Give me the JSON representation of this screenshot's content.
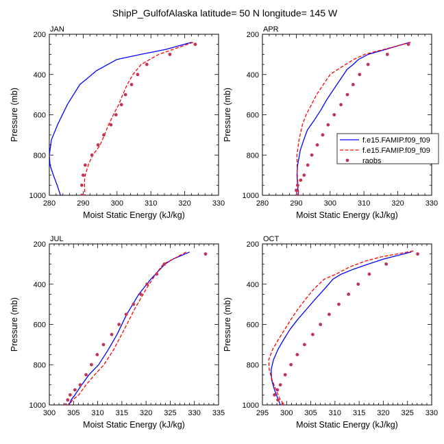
{
  "figure": {
    "title": "ShipP_GulfofAlaska  latitude= 50 N longitude= 145 W",
    "legend": {
      "placement": "right-of-APR-panel",
      "entries": [
        {
          "label": "f.e15.FAMIP.f09_f09",
          "style": "solid",
          "color": "#0000ff"
        },
        {
          "label": "f.e15.FAMIP.f09_f09",
          "style": "dashed",
          "color": "#ff0000"
        },
        {
          "label": "raobs",
          "style": "dots",
          "color": "#c0345a"
        }
      ]
    }
  },
  "chart_data": [
    {
      "type": "line",
      "month": "JAN",
      "xlabel": "Moist Static Energy (kJ/kg)",
      "ylabel": "Pressure (mb)",
      "xlim": [
        280,
        330
      ],
      "ylim": [
        200,
        1000
      ],
      "y_inverted": true,
      "xticks": [
        280,
        290,
        300,
        310,
        320,
        330
      ],
      "yticks": [
        200,
        400,
        600,
        800,
        1000
      ],
      "series": [
        {
          "style": "solid",
          "color": "#0000ff",
          "x": [
            322,
            314.5,
            307,
            300,
            294,
            289,
            285.3,
            282.4,
            280.6,
            280,
            280.2,
            281.2,
            282.3,
            283.3
          ],
          "y": [
            240,
            275,
            300,
            325,
            380,
            450,
            550,
            650,
            725,
            800,
            850,
            900,
            950,
            1000
          ]
        },
        {
          "style": "dashed",
          "color": "#ff0000",
          "x": [
            322.5,
            312.3,
            307.1,
            304.7,
            303,
            301.7,
            300.5,
            298.9,
            297.5,
            296.3,
            295,
            294,
            292.8,
            291.5,
            290.6,
            290.4,
            290.4,
            290.5
          ],
          "y": [
            240,
            300,
            350,
            400,
            450,
            500,
            550,
            600,
            650,
            700,
            750,
            775,
            800,
            850,
            900,
            925,
            950,
            1000
          ]
        },
        {
          "style": "dots",
          "color": "#c0345a",
          "x": [
            323.1,
            315.6,
            308.8,
            306.1,
            304.3,
            302.5,
            301.3,
            299.7,
            298.2,
            296.1,
            294.4,
            292.6,
            290.6,
            290,
            289.6,
            289.6
          ],
          "y": [
            250,
            300,
            350,
            400,
            450,
            500,
            550,
            600,
            650,
            700,
            750,
            800,
            850,
            900,
            950,
            1000
          ]
        }
      ]
    },
    {
      "type": "line",
      "month": "APR",
      "xlabel": "Moist Static Energy (kJ/kg)",
      "ylabel": "Pressure (mb)",
      "xlim": [
        280,
        330
      ],
      "ylim": [
        200,
        1000
      ],
      "y_inverted": true,
      "xticks": [
        280,
        290,
        300,
        310,
        320,
        330
      ],
      "yticks": [
        200,
        400,
        600,
        800,
        1000
      ],
      "series": [
        {
          "style": "solid",
          "color": "#0000ff",
          "x": [
            323.5,
            316.5,
            311.2,
            308.4,
            306.8,
            305,
            303,
            301,
            299,
            297.3,
            295.4,
            293.3,
            292.2,
            291.2,
            290.4,
            290.2,
            290.4,
            290.6
          ],
          "y": [
            240,
            275,
            300,
            325,
            350,
            375,
            425,
            475,
            525,
            575,
            625,
            675,
            725,
            775,
            850,
            900,
            950,
            1000
          ]
        },
        {
          "style": "dashed",
          "color": "#ff0000",
          "x": [
            323.8,
            316,
            310.2,
            307,
            304.6,
            302.2,
            300,
            298,
            296,
            294.5,
            292.9,
            291.8,
            290.8,
            290.2,
            290.3,
            290.7
          ],
          "y": [
            240,
            275,
            300,
            325,
            350,
            375,
            400,
            450,
            500,
            550,
            600,
            650,
            725,
            800,
            900,
            1000
          ]
        },
        {
          "style": "dots",
          "color": "#c0345a",
          "x": [
            323.1,
            316.9,
            311.2,
            308.7,
            306.8,
            305.1,
            303.2,
            301.2,
            299.4,
            297.8,
            296.2,
            294.6,
            293.4,
            292.3,
            291.3,
            290.4,
            290,
            290.2
          ],
          "y": [
            250,
            300,
            350,
            400,
            450,
            500,
            550,
            600,
            650,
            700,
            750,
            800,
            850,
            900,
            925,
            950,
            975,
            1000
          ]
        }
      ]
    },
    {
      "type": "line",
      "month": "JUL",
      "xlabel": "Moist Static Energy (kJ/kg)",
      "ylabel": "Pressure (mb)",
      "xlim": [
        300,
        335
      ],
      "ylim": [
        200,
        1000
      ],
      "y_inverted": true,
      "xticks": [
        300,
        305,
        310,
        315,
        320,
        325,
        330,
        335
      ],
      "yticks": [
        200,
        400,
        600,
        800,
        1000
      ],
      "series": [
        {
          "style": "solid",
          "color": "#0000ff",
          "x": [
            329,
            325.6,
            323.9,
            321,
            318.5,
            316,
            314,
            312.2,
            310.2,
            308.2,
            306.7,
            305.3,
            304.5,
            304.1
          ],
          "y": [
            240,
            275,
            300,
            375,
            450,
            550,
            650,
            725,
            800,
            850,
            900,
            950,
            975,
            1000
          ]
        },
        {
          "style": "dashed",
          "color": "#ff0000",
          "x": [
            328.3,
            325.6,
            323.6,
            322,
            320,
            317.6,
            315.5,
            313.3,
            311.3,
            309.4,
            307.6,
            306.1,
            304.8,
            304.1,
            303.6
          ],
          "y": [
            240,
            275,
            300,
            350,
            425,
            525,
            625,
            725,
            800,
            850,
            900,
            950,
            975,
            1000,
            1020
          ]
        },
        {
          "style": "dots",
          "color": "#c0345a",
          "x": [
            332.3,
            323.8,
            322.2,
            320.2,
            318.9,
            317.4,
            315.9,
            314.4,
            312.9,
            311.2,
            309.9,
            308.7,
            307.6,
            306.4,
            305.3,
            304.3,
            303.8,
            303.4
          ],
          "y": [
            250,
            300,
            350,
            400,
            450,
            500,
            550,
            600,
            650,
            700,
            750,
            800,
            850,
            900,
            925,
            950,
            975,
            1000
          ]
        }
      ]
    },
    {
      "type": "line",
      "month": "OCT",
      "xlabel": "Moist Static Energy (kJ/kg)",
      "ylabel": "Pressure (mb)",
      "xlim": [
        295,
        330
      ],
      "ylim": [
        200,
        1000
      ],
      "y_inverted": true,
      "xticks": [
        295,
        300,
        305,
        310,
        315,
        320,
        325,
        330
      ],
      "yticks": [
        200,
        400,
        600,
        800,
        1000
      ],
      "series": [
        {
          "style": "solid",
          "color": "#0000ff",
          "x": [
            325.8,
            320.1,
            316.9,
            313.9,
            311.3,
            309.6,
            307.8,
            305.9,
            304.1,
            302.3,
            300.7,
            299.4,
            298.2,
            297.3,
            296.8,
            296.9,
            297.5,
            298.3,
            298.7
          ],
          "y": [
            240,
            275,
            300,
            325,
            350,
            375,
            425,
            475,
            525,
            575,
            625,
            675,
            725,
            775,
            825,
            875,
            925,
            975,
            1000
          ]
        },
        {
          "style": "dashed",
          "color": "#ff0000",
          "x": [
            326.2,
            319.4,
            316.3,
            313,
            310.2,
            307.8,
            305.6,
            303.9,
            302.3,
            300.9,
            299.6,
            298.3,
            297.1,
            296.3,
            296.4,
            297,
            297.8,
            298.7,
            299.6
          ],
          "y": [
            235,
            265,
            285,
            315,
            350,
            375,
            425,
            475,
            525,
            575,
            625,
            675,
            725,
            775,
            825,
            875,
            925,
            975,
            1000
          ]
        },
        {
          "style": "dots",
          "color": "#c0345a",
          "x": [
            327.1,
            320.6,
            317.1,
            314.8,
            312.8,
            310.8,
            308.8,
            307,
            305.4,
            303.7,
            302.2,
            300.9,
            299.7,
            298.7,
            298.1,
            297.5,
            298.2,
            299.2
          ],
          "y": [
            250,
            300,
            350,
            400,
            450,
            500,
            550,
            600,
            650,
            700,
            750,
            800,
            850,
            900,
            925,
            950,
            975,
            1000
          ]
        }
      ]
    }
  ]
}
